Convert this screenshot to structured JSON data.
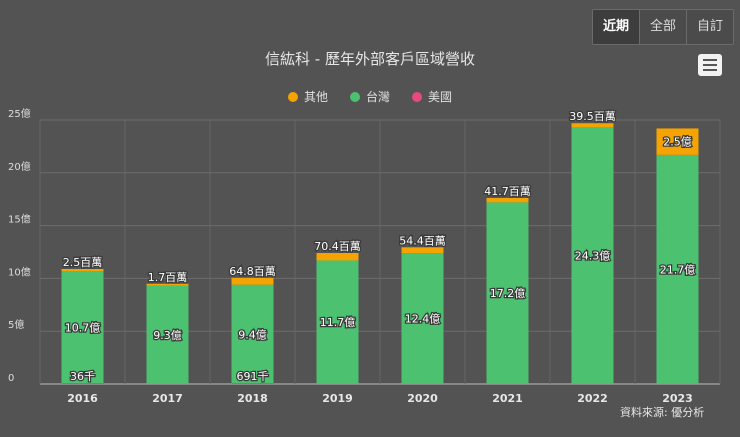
{
  "range_buttons": [
    {
      "label": "近期",
      "active": true
    },
    {
      "label": "全部",
      "active": false
    },
    {
      "label": "自訂",
      "active": false
    }
  ],
  "source": "資料來源: 優分析",
  "chart_data": {
    "type": "bar",
    "stacked": true,
    "title": "信紘科 - 歷年外部客戶區域營收",
    "unit": "億",
    "ylim": [
      0,
      25
    ],
    "yticks": [
      0,
      5,
      10,
      15,
      20,
      25
    ],
    "ytick_labels": [
      "0",
      "5億",
      "10億",
      "15億",
      "20億",
      "25億"
    ],
    "categories": [
      "2016",
      "2017",
      "2018",
      "2019",
      "2020",
      "2021",
      "2022",
      "2023"
    ],
    "legend_position": "top-center",
    "series": [
      {
        "name": "美國",
        "color": "#e84a7f",
        "values": [
          0.00036,
          null,
          0.00691,
          null,
          null,
          null,
          null,
          null
        ],
        "labels": [
          "36千",
          "",
          "691千",
          "",
          "",
          "",
          "",
          ""
        ]
      },
      {
        "name": "台灣",
        "color": "#4cc270",
        "values": [
          10.7,
          9.3,
          9.4,
          11.7,
          12.4,
          17.2,
          24.3,
          21.7
        ],
        "labels": [
          "10.7億",
          "9.3億",
          "9.4億",
          "11.7億",
          "12.4億",
          "17.2億",
          "24.3億",
          "21.7億"
        ]
      },
      {
        "name": "其他",
        "color": "#f5a300",
        "values": [
          0.025,
          0.017,
          0.648,
          0.704,
          0.544,
          0.417,
          0.395,
          2.5
        ],
        "labels": [
          "2.5百萬",
          "1.7百萬",
          "64.8百萬",
          "70.4百萬",
          "54.4百萬",
          "41.7百萬",
          "39.5百萬",
          "2.5億"
        ]
      }
    ],
    "legend_order": [
      "其他",
      "台灣",
      "美國"
    ]
  }
}
